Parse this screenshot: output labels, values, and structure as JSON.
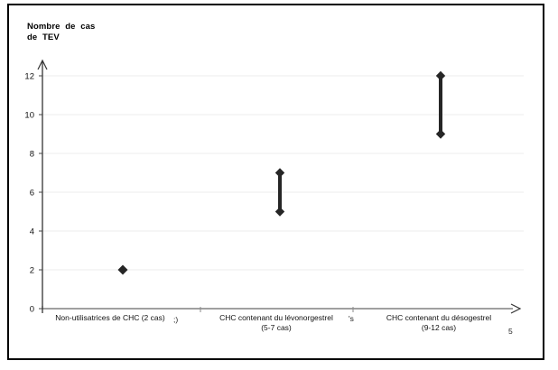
{
  "title": {
    "line1": "Nombre  de  cas",
    "line2": "de TEV"
  },
  "chart_data": {
    "type": "scatter",
    "subtype": "point-and-range",
    "title": "Nombre de cas de TEV",
    "ylabel": "Nombre de cas de TEV",
    "xlabel": "",
    "ylim": [
      0,
      13
    ],
    "yticks": [
      0,
      2,
      4,
      6,
      8,
      10,
      12
    ],
    "grid": true,
    "legend": false,
    "marker": "diamond",
    "marker_color": "#262626",
    "grid_color": "#ececec",
    "yaxis_color": "#333333",
    "xaxis_color": "#a0a0a0",
    "points": [
      {
        "category": "Non-utilisatrices de CHC",
        "label_lines": [
          "Non-utilisatrices de CHC (2 cas)"
        ],
        "values": [
          2
        ]
      },
      {
        "category": "CHC contenant du lévonorgestrel",
        "label_lines": [
          "CHC contenant du lévonorgestrel",
          "(5-7 cas)"
        ],
        "values": [
          5,
          7
        ]
      },
      {
        "category": "CHC contenant du désogestrel",
        "label_lines": [
          "CHC contenant du désogestrel",
          "(9-12 cas)"
        ],
        "values": [
          9,
          12
        ]
      }
    ]
  },
  "artifacts": [
    {
      "text": ";)"
    },
    {
      "text": "'s"
    },
    {
      "text": "5"
    }
  ]
}
